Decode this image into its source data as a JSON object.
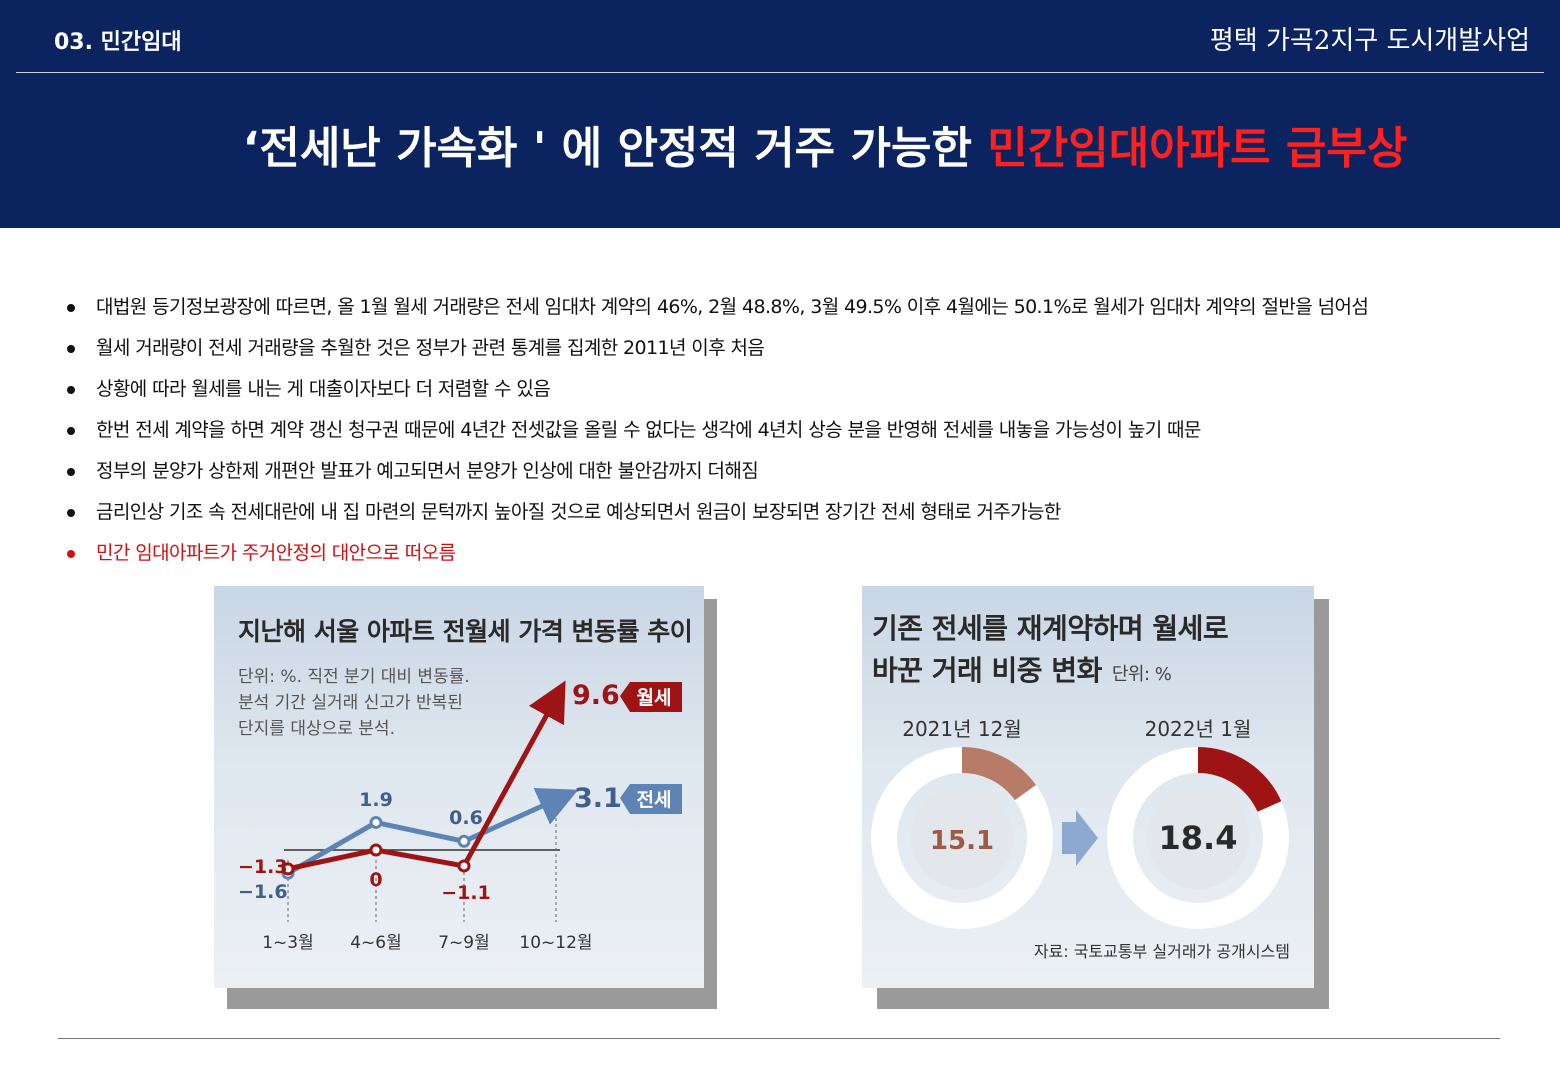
{
  "header": {
    "section": "03. 민간임대",
    "project": "평택 가곡2지구 도시개발사업",
    "headline_white": "‘전세난 가속화 ' 에 안정적 거주 가능한 ",
    "headline_red": "민간임대아파트 급부상",
    "accent_red": "#ff2020",
    "bg_color": "#0b2460"
  },
  "bullets": [
    "대법원 등기정보광장에 따르면, 올 1월 월세 거래량은 전세 임대차 계약의 46%, 2월 48.8%, 3월 49.5% 이후 4월에는 50.1%로 월세가 임대차 계약의 절반을 넘어섬",
    "월세 거래량이 전세 거래량을 추월한 것은 정부가 관련 통계를 집계한 2011년 이후 처음",
    "상황에 따라 월세를 내는 게 대출이자보다 더 저렴할 수 있음",
    "한번 전세 계약을 하면 계약 갱신 청구권 때문에 4년간 전셋값을 올릴 수 없다는 생각에 4년치 상승 분을 반영해 전세를 내놓을 가능성이 높기 때문",
    "정부의 분양가 상한제 개편안 발표가 예고되면서 분양가 인상에 대한 불안감까지 더해짐",
    "금리인상 기조 속 전세대란에 내 집 마련의 문턱까지 높아질 것으로 예상되면서 원금이 보장되면 장기간 전세 형태로 거주가능한",
    "민간 임대아파트가 주거안정의 대안으로 떠오름"
  ],
  "chart_data": [
    {
      "type": "line",
      "title": "지난해 서울 아파트 전월세 가격 변동률 추이",
      "note_lines": [
        "단위: %. 직전 분기 대비 변동률.",
        "분석 기간 실거래 신고가 반복된",
        "단지를 대상으로 분석."
      ],
      "categories": [
        "1~3월",
        "4~6월",
        "7~9월",
        "10~12월"
      ],
      "series": [
        {
          "name": "월세",
          "values": [
            -1.3,
            0,
            -1.1,
            9.6
          ],
          "labels": [
            "−1.3",
            "0",
            "−1.1",
            "9.6"
          ],
          "color": "#9e1414"
        },
        {
          "name": "전세",
          "values": [
            -1.6,
            1.9,
            0.6,
            3.1
          ],
          "labels": [
            "−1.6",
            "1.9",
            "0.6",
            "3.1"
          ],
          "color": "#5d84b4"
        }
      ],
      "zero_line": true,
      "legend": "right end labels"
    },
    {
      "type": "pie",
      "title_line1": "기존 전세를 재계약하며 월세로",
      "title_line2": "바꾼 거래 비중 변화",
      "unit": "단위: %",
      "items": [
        {
          "label": "2021년 12월",
          "value": 15.1,
          "value_text": "15.1",
          "color": "#b87b68"
        },
        {
          "label": "2022년 1월",
          "value": 18.4,
          "value_text": "18.4",
          "color": "#9e1414"
        }
      ],
      "source": "자료: 국토교통부 실거래가 공개시스템"
    }
  ]
}
